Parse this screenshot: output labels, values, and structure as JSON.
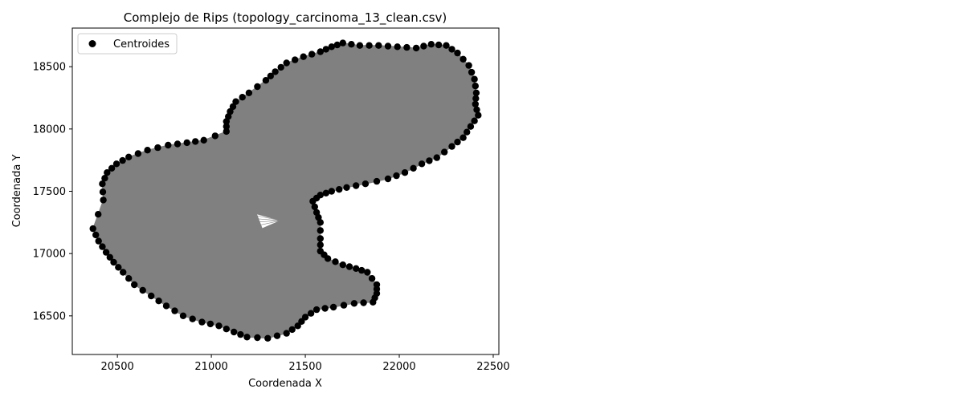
{
  "chart_data": {
    "type": "scatter",
    "title": "Complejo de Rips (topology_carcinoma_13_clean.csv)",
    "xlabel": "Coordenada X",
    "ylabel": "Coordenada Y",
    "xlim": [
      20260,
      22530
    ],
    "ylim": [
      16190,
      18810
    ],
    "xticks": [
      20500,
      21000,
      21500,
      22000,
      22500
    ],
    "yticks": [
      16500,
      17000,
      17500,
      18000,
      18500
    ],
    "grid": false,
    "legend": {
      "placement": "top-left",
      "entries": [
        {
          "label": "Centroides",
          "marker": "circle",
          "color": "#000000"
        }
      ]
    },
    "series": [
      {
        "name": "Centroides",
        "marker_color": "#000000",
        "complex_color": "#808080",
        "outline": [
          [
            20370,
            17200
          ],
          [
            20425,
            17430
          ],
          [
            20420,
            17560
          ],
          [
            20445,
            17650
          ],
          [
            20495,
            17720
          ],
          [
            20560,
            17775
          ],
          [
            20660,
            17830
          ],
          [
            20770,
            17870
          ],
          [
            20870,
            17890
          ],
          [
            20960,
            17910
          ],
          [
            21080,
            17980
          ],
          [
            21080,
            18060
          ],
          [
            21100,
            18140
          ],
          [
            21130,
            18220
          ],
          [
            21200,
            18290
          ],
          [
            21290,
            18390
          ],
          [
            21340,
            18460
          ],
          [
            21400,
            18530
          ],
          [
            21490,
            18580
          ],
          [
            21580,
            18620
          ],
          [
            21640,
            18660
          ],
          [
            21700,
            18690
          ],
          [
            21790,
            18670
          ],
          [
            21890,
            18670
          ],
          [
            21990,
            18660
          ],
          [
            22090,
            18650
          ],
          [
            22170,
            18680
          ],
          [
            22250,
            18670
          ],
          [
            22310,
            18610
          ],
          [
            22370,
            18510
          ],
          [
            22400,
            18400
          ],
          [
            22410,
            18290
          ],
          [
            22405,
            18200
          ],
          [
            22420,
            18110
          ],
          [
            22380,
            18020
          ],
          [
            22340,
            17930
          ],
          [
            22280,
            17860
          ],
          [
            22200,
            17770
          ],
          [
            22120,
            17720
          ],
          [
            22030,
            17650
          ],
          [
            21940,
            17600
          ],
          [
            21820,
            17560
          ],
          [
            21720,
            17530
          ],
          [
            21640,
            17500
          ],
          [
            21580,
            17470
          ],
          [
            21540,
            17420
          ],
          [
            21560,
            17330
          ],
          [
            21580,
            17250
          ],
          [
            21580,
            17120
          ],
          [
            21580,
            17020
          ],
          [
            21620,
            16960
          ],
          [
            21700,
            16910
          ],
          [
            21770,
            16880
          ],
          [
            21830,
            16850
          ],
          [
            21880,
            16750
          ],
          [
            21880,
            16680
          ],
          [
            21860,
            16610
          ],
          [
            21760,
            16600
          ],
          [
            21650,
            16570
          ],
          [
            21560,
            16550
          ],
          [
            21500,
            16490
          ],
          [
            21460,
            16420
          ],
          [
            21400,
            16360
          ],
          [
            21300,
            16320
          ],
          [
            21190,
            16330
          ],
          [
            21120,
            16370
          ],
          [
            21040,
            16420
          ],
          [
            20950,
            16450
          ],
          [
            20850,
            16500
          ],
          [
            20760,
            16580
          ],
          [
            20680,
            16660
          ],
          [
            20590,
            16750
          ],
          [
            20530,
            16850
          ],
          [
            20480,
            16930
          ],
          [
            20440,
            17010
          ],
          [
            20400,
            17100
          ]
        ],
        "hole": [
          [
            21240,
            17320
          ],
          [
            21370,
            17265
          ],
          [
            21270,
            17200
          ]
        ]
      }
    ]
  }
}
